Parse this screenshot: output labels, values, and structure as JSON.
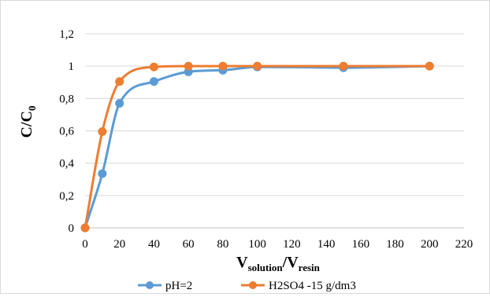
{
  "chart_data": {
    "type": "line",
    "title": "",
    "xlabel": {
      "main": "V",
      "sub1": "solution",
      "sep": "/V",
      "sub2": "resin"
    },
    "ylabel": {
      "main": "C/C",
      "sub": "0"
    },
    "xlim": [
      0,
      220
    ],
    "ylim": [
      0,
      1.2
    ],
    "x_ticks": [
      "0",
      "20",
      "40",
      "60",
      "80",
      "100",
      "120",
      "140",
      "160",
      "180",
      "200",
      "220"
    ],
    "y_ticks": [
      "0",
      "0,2",
      "0,4",
      "0,6",
      "0,8",
      "1",
      "1,2"
    ],
    "grid": "horizontal",
    "legend_position": "bottom",
    "series": [
      {
        "name": "pH=2",
        "color": "#5b9bd5",
        "x": [
          0,
          10,
          20,
          40,
          60,
          80,
          100,
          150,
          200
        ],
        "y": [
          0,
          0.335,
          0.77,
          0.905,
          0.965,
          0.975,
          0.995,
          0.99,
          1.0
        ]
      },
      {
        "name": "H2SO4 -15 g/dm3",
        "color": "#ed7d31",
        "x": [
          0,
          10,
          20,
          40,
          60,
          80,
          100,
          150,
          200
        ],
        "y": [
          0,
          0.595,
          0.905,
          0.995,
          1.0,
          1.0,
          1.0,
          1.0,
          1.0
        ]
      }
    ]
  }
}
